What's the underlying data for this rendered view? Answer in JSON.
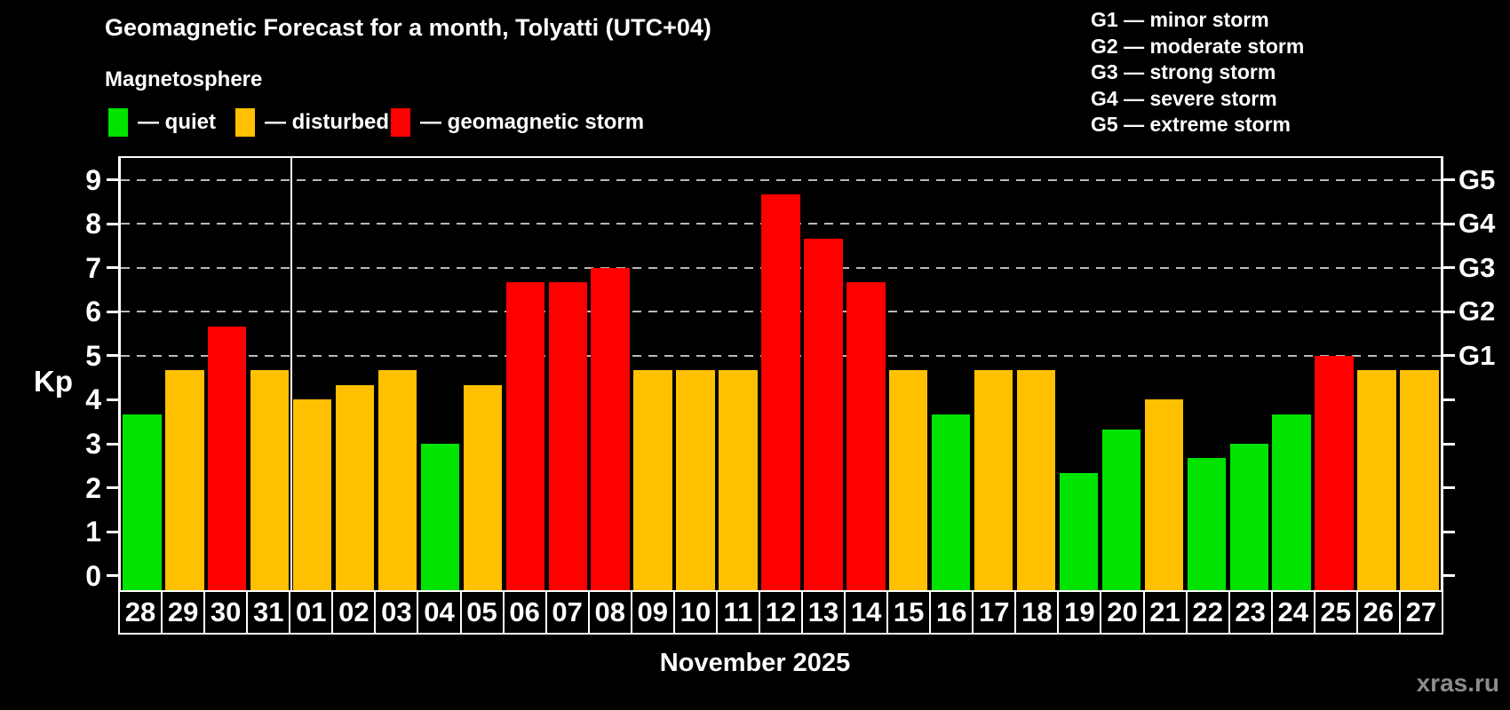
{
  "header": {
    "title": "Geomagnetic Forecast for a month, Tolyatti (UTC+04)",
    "subtitle": "Magnetosphere"
  },
  "legend": {
    "items": [
      {
        "id": "quiet",
        "label": "— quiet",
        "color": "#00e400"
      },
      {
        "id": "disturbed",
        "label": "— disturbed",
        "color": "#ffc000"
      },
      {
        "id": "storm",
        "label": "— geomagnetic storm",
        "color": "#ff0000"
      }
    ]
  },
  "storm_scale": {
    "items": [
      "G1 — minor storm",
      "G2 — moderate storm",
      "G3 — strong storm",
      "G4 — severe storm",
      "G5 — extreme storm"
    ]
  },
  "chart_data": {
    "type": "bar",
    "title": "Geomagnetic Forecast for a month, Tolyatti (UTC+04)",
    "ylabel": "Kp",
    "xlabel": "November 2025",
    "ylim": [
      -0.33,
      9.5
    ],
    "yticks": [
      0,
      1,
      2,
      3,
      4,
      5,
      6,
      7,
      8,
      9
    ],
    "gridlines_at": [
      5,
      6,
      7,
      8,
      9
    ],
    "grid": "dashed",
    "legend_position": "top",
    "right_axis_labels": [
      {
        "kp": 5,
        "text": "G1"
      },
      {
        "kp": 6,
        "text": "G2"
      },
      {
        "kp": 7,
        "text": "G3"
      },
      {
        "kp": 8,
        "text": "G4"
      },
      {
        "kp": 9,
        "text": "G5"
      }
    ],
    "month_separator_after_index": 3,
    "categories": [
      "28",
      "29",
      "30",
      "31",
      "01",
      "02",
      "03",
      "04",
      "05",
      "06",
      "07",
      "08",
      "09",
      "10",
      "11",
      "12",
      "13",
      "14",
      "15",
      "16",
      "17",
      "18",
      "19",
      "20",
      "21",
      "22",
      "23",
      "24",
      "25",
      "26",
      "27"
    ],
    "values": [
      3.67,
      4.67,
      5.67,
      4.67,
      4.0,
      4.33,
      4.67,
      3.0,
      4.33,
      6.67,
      6.67,
      7.0,
      4.67,
      4.67,
      4.67,
      8.67,
      7.67,
      6.67,
      4.67,
      3.67,
      4.67,
      4.67,
      2.33,
      3.33,
      4.0,
      2.67,
      3.0,
      3.67,
      5.0,
      4.67,
      4.67
    ],
    "statuses": [
      "quiet",
      "disturbed",
      "storm",
      "disturbed",
      "disturbed",
      "disturbed",
      "disturbed",
      "quiet",
      "disturbed",
      "storm",
      "storm",
      "storm",
      "disturbed",
      "disturbed",
      "disturbed",
      "storm",
      "storm",
      "storm",
      "disturbed",
      "quiet",
      "disturbed",
      "disturbed",
      "quiet",
      "quiet",
      "disturbed",
      "quiet",
      "quiet",
      "quiet",
      "storm",
      "disturbed",
      "disturbed"
    ]
  },
  "footer": {
    "month_label": "November 2025",
    "watermark": "xras.ru"
  },
  "colors": {
    "background": "#000000",
    "axis": "#ffffff",
    "grid": "#b9b9b9",
    "text": "#ffffff",
    "watermark": "#8c8c8c"
  }
}
